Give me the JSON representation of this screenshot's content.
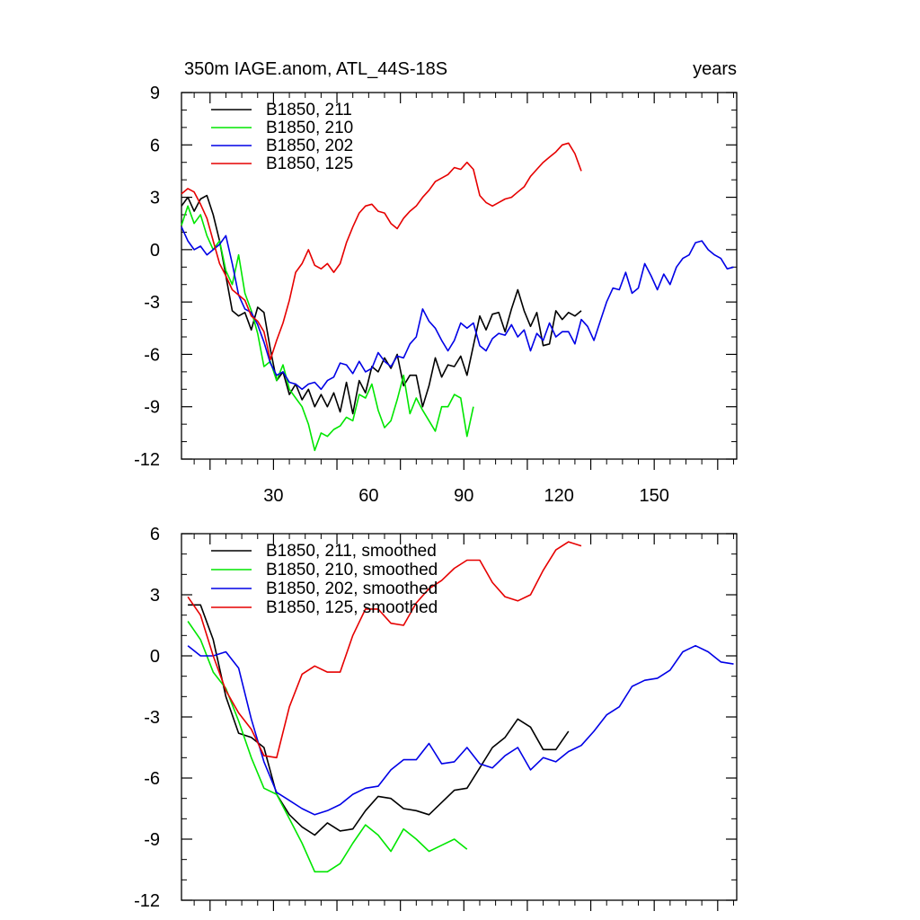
{
  "colors": {
    "black": "#000000",
    "green": "#00e600",
    "blue": "#0000e6",
    "red": "#e60000"
  },
  "chart_data": [
    {
      "type": "line",
      "title": "350m IAGE.anom, ATL_44S-18S",
      "title_right": "years",
      "xlim": [
        1,
        176
      ],
      "ylim": [
        -12,
        9
      ],
      "yticks": [
        -12,
        -9,
        -6,
        -3,
        0,
        3,
        6,
        9
      ],
      "ytick_labels": [
        "-12",
        "-9",
        "-6",
        "-3",
        "0",
        "3",
        "6",
        "9"
      ],
      "xticks": [
        30,
        60,
        90,
        120,
        150
      ],
      "xtick_labels": [
        "30",
        "60",
        "90",
        "120",
        "150"
      ],
      "legend": [
        "B1850, 211",
        "B1850, 210",
        "B1850, 202",
        "B1850, 125"
      ],
      "series": [
        {
          "name": "B1850, 211",
          "color": "#000000",
          "x": [
            1,
            3,
            5,
            7,
            9,
            11,
            13,
            15,
            17,
            19,
            21,
            23,
            25,
            27,
            29,
            31,
            33,
            35,
            37,
            39,
            41,
            43,
            45,
            47,
            49,
            51,
            53,
            55,
            57,
            59,
            61,
            63,
            65,
            67,
            69,
            71,
            73,
            75,
            77,
            79,
            81,
            83,
            85,
            87,
            89,
            91,
            93,
            95,
            97,
            99,
            101,
            103,
            105,
            107,
            109,
            111,
            113,
            115,
            117,
            119,
            121,
            123,
            125,
            127
          ],
          "values": [
            2.5,
            3.0,
            2.2,
            2.9,
            3.1,
            2.0,
            0.5,
            -1.5,
            -3.5,
            -3.8,
            -3.6,
            -4.6,
            -3.3,
            -3.6,
            -5.7,
            -7.5,
            -7.0,
            -8.3,
            -7.7,
            -8.6,
            -8.0,
            -9.0,
            -8.3,
            -9.0,
            -8.2,
            -9.3,
            -7.6,
            -9.4,
            -7.5,
            -8.2,
            -6.7,
            -7.0,
            -6.2,
            -6.8,
            -6.0,
            -7.8,
            -7.2,
            -7.2,
            -9.0,
            -7.8,
            -6.2,
            -7.3,
            -6.6,
            -6.7,
            -6.1,
            -7.2,
            -5.5,
            -3.8,
            -4.6,
            -3.7,
            -3.6,
            -4.7,
            -3.4,
            -2.3,
            -3.5,
            -4.4,
            -3.6,
            -5.5,
            -5.4,
            -3.5,
            -4.0,
            -3.6,
            -3.8,
            -3.5
          ]
        },
        {
          "name": "B1850, 210",
          "color": "#00e600",
          "x": [
            1,
            3,
            5,
            7,
            9,
            11,
            13,
            15,
            17,
            19,
            21,
            23,
            25,
            27,
            29,
            31,
            33,
            35,
            37,
            39,
            41,
            43,
            45,
            47,
            49,
            51,
            53,
            55,
            57,
            59,
            61,
            63,
            65,
            67,
            69,
            71,
            73,
            75,
            77,
            79,
            81,
            83,
            85,
            87,
            89,
            91,
            93
          ],
          "values": [
            1.4,
            2.5,
            1.5,
            2.0,
            0.8,
            0.0,
            0.5,
            -1.2,
            -2.0,
            -0.3,
            -2.5,
            -3.5,
            -4.8,
            -6.7,
            -6.4,
            -7.5,
            -6.6,
            -8.0,
            -8.5,
            -9.0,
            -10.0,
            -11.5,
            -10.5,
            -10.7,
            -10.3,
            -10.1,
            -9.6,
            -9.8,
            -8.3,
            -8.5,
            -7.7,
            -9.2,
            -10.2,
            -9.8,
            -8.6,
            -7.2,
            -9.4,
            -8.5,
            -9.2,
            -9.8,
            -10.4,
            -9.0,
            -9.0,
            -8.3,
            -8.5,
            -10.7,
            -9.0
          ]
        },
        {
          "name": "B1850, 202",
          "color": "#0000e6",
          "x": [
            1,
            3,
            5,
            7,
            9,
            11,
            13,
            15,
            17,
            19,
            21,
            23,
            25,
            27,
            29,
            31,
            33,
            35,
            37,
            39,
            41,
            43,
            45,
            47,
            49,
            51,
            53,
            55,
            57,
            59,
            61,
            63,
            65,
            67,
            69,
            71,
            73,
            75,
            77,
            79,
            81,
            83,
            85,
            87,
            89,
            91,
            93,
            95,
            97,
            99,
            101,
            103,
            105,
            107,
            109,
            111,
            113,
            115,
            117,
            119,
            121,
            123,
            125,
            127,
            129,
            131,
            133,
            135,
            137,
            139,
            141,
            143,
            145,
            147,
            149,
            151,
            153,
            155,
            157,
            159,
            161,
            163,
            165,
            167,
            169,
            171,
            173,
            175
          ],
          "values": [
            1.3,
            0.5,
            0.0,
            0.2,
            -0.3,
            0.0,
            0.3,
            0.8,
            -0.8,
            -2.6,
            -3.4,
            -3.6,
            -4.3,
            -5.3,
            -6.5,
            -7.2,
            -7.0,
            -7.6,
            -7.7,
            -8.0,
            -7.7,
            -7.6,
            -8.0,
            -7.5,
            -7.3,
            -6.5,
            -6.6,
            -7.1,
            -6.4,
            -7.0,
            -6.8,
            -5.9,
            -6.4,
            -6.7,
            -6.1,
            -6.2,
            -5.4,
            -5.0,
            -3.4,
            -4.1,
            -4.5,
            -5.2,
            -5.8,
            -5.2,
            -4.2,
            -4.5,
            -4.2,
            -5.5,
            -5.8,
            -5.1,
            -4.8,
            -4.9,
            -4.3,
            -5.0,
            -4.6,
            -5.8,
            -4.8,
            -5.2,
            -4.2,
            -5.0,
            -4.7,
            -4.7,
            -5.4,
            -4.0,
            -4.4,
            -5.2,
            -4.1,
            -3.0,
            -2.2,
            -2.3,
            -1.3,
            -2.5,
            -2.2,
            -0.8,
            -1.5,
            -2.3,
            -1.4,
            -2.0,
            -1.0,
            -0.5,
            -0.3,
            0.4,
            0.5,
            0.0,
            -0.3,
            -0.5,
            -1.1,
            -1.0
          ]
        },
        {
          "name": "B1850, 125",
          "color": "#e60000",
          "x": [
            1,
            3,
            5,
            7,
            9,
            11,
            13,
            15,
            17,
            19,
            21,
            23,
            25,
            27,
            29,
            31,
            33,
            35,
            37,
            39,
            41,
            43,
            45,
            47,
            49,
            51,
            53,
            55,
            57,
            59,
            61,
            63,
            65,
            67,
            69,
            71,
            73,
            75,
            77,
            79,
            81,
            83,
            85,
            87,
            89,
            91,
            93,
            95,
            97,
            99,
            101,
            103,
            105,
            107,
            109,
            111,
            113,
            115,
            117,
            119,
            121,
            123,
            125,
            127
          ],
          "values": [
            3.2,
            3.5,
            3.3,
            2.6,
            1.8,
            0.5,
            -0.8,
            -1.5,
            -2.3,
            -2.6,
            -2.9,
            -3.8,
            -4.1,
            -4.7,
            -6.3,
            -5.2,
            -4.2,
            -2.9,
            -1.3,
            -0.8,
            0.0,
            -0.9,
            -1.1,
            -0.8,
            -1.3,
            -0.8,
            0.4,
            1.3,
            2.1,
            2.5,
            2.6,
            2.2,
            2.1,
            1.5,
            1.2,
            1.8,
            2.2,
            2.5,
            3.0,
            3.4,
            3.9,
            4.1,
            4.3,
            4.7,
            4.6,
            5.0,
            4.6,
            3.1,
            2.7,
            2.5,
            2.7,
            2.9,
            3.0,
            3.3,
            3.6,
            4.2,
            4.6,
            5.0,
            5.3,
            5.6,
            6.0,
            6.1,
            5.5,
            4.5
          ]
        }
      ]
    },
    {
      "type": "line",
      "title": "",
      "xlim": [
        1,
        176
      ],
      "ylim": [
        -12,
        6
      ],
      "yticks": [
        -12,
        -9,
        -6,
        -3,
        0,
        3,
        6
      ],
      "ytick_labels": [
        "-12",
        "-9",
        "-6",
        "-3",
        "0",
        "3",
        "6"
      ],
      "legend": [
        "B1850, 211, smoothed",
        "B1850, 210, smoothed",
        "B1850, 202, smoothed",
        "B1850, 125, smoothed"
      ],
      "series": [
        {
          "name": "B1850, 211, smoothed",
          "color": "#000000",
          "x": [
            3,
            7,
            11,
            15,
            19,
            23,
            27,
            31,
            35,
            39,
            43,
            47,
            51,
            55,
            59,
            63,
            67,
            71,
            75,
            79,
            83,
            87,
            91,
            95,
            99,
            103,
            107,
            111,
            115,
            119,
            123
          ],
          "values": [
            2.5,
            2.5,
            0.8,
            -2.0,
            -3.8,
            -4.0,
            -4.5,
            -6.8,
            -7.8,
            -8.4,
            -8.8,
            -8.2,
            -8.6,
            -8.5,
            -7.6,
            -6.9,
            -7.0,
            -7.5,
            -7.6,
            -7.8,
            -7.2,
            -6.6,
            -6.5,
            -5.5,
            -4.5,
            -4.0,
            -3.1,
            -3.5,
            -4.6,
            -4.6,
            -3.7
          ]
        },
        {
          "name": "B1850, 210, smoothed",
          "color": "#00e600",
          "x": [
            3,
            7,
            11,
            15,
            19,
            23,
            27,
            31,
            35,
            39,
            43,
            47,
            51,
            55,
            59,
            63,
            67,
            71,
            75,
            79,
            83,
            87,
            91
          ],
          "values": [
            1.7,
            0.8,
            -0.8,
            -1.6,
            -3.2,
            -5.0,
            -6.5,
            -6.8,
            -8.0,
            -9.2,
            -10.6,
            -10.6,
            -10.2,
            -9.2,
            -8.3,
            -8.8,
            -9.6,
            -8.5,
            -9.0,
            -9.6,
            -9.3,
            -9.0,
            -9.5
          ]
        },
        {
          "name": "B1850, 202, smoothed",
          "color": "#0000e6",
          "x": [
            3,
            7,
            11,
            15,
            19,
            23,
            27,
            31,
            35,
            39,
            43,
            47,
            51,
            55,
            59,
            63,
            67,
            71,
            75,
            79,
            83,
            87,
            91,
            95,
            99,
            103,
            107,
            111,
            115,
            119,
            123,
            127,
            131,
            135,
            139,
            143,
            147,
            151,
            155,
            159,
            163,
            167,
            171,
            175
          ],
          "values": [
            0.5,
            0.0,
            0.0,
            0.2,
            -0.6,
            -3.1,
            -5.2,
            -6.7,
            -7.1,
            -7.5,
            -7.8,
            -7.6,
            -7.3,
            -6.8,
            -6.5,
            -6.4,
            -5.6,
            -5.1,
            -5.1,
            -4.3,
            -5.3,
            -5.2,
            -4.5,
            -5.3,
            -5.5,
            -4.9,
            -4.5,
            -5.6,
            -5.0,
            -5.2,
            -4.7,
            -4.4,
            -3.7,
            -2.9,
            -2.5,
            -1.5,
            -1.2,
            -1.1,
            -0.7,
            0.2,
            0.5,
            0.2,
            -0.3,
            -0.4
          ]
        },
        {
          "name": "B1850, 125, smoothed",
          "color": "#e60000",
          "x": [
            3,
            7,
            11,
            15,
            19,
            23,
            27,
            31,
            35,
            39,
            43,
            47,
            51,
            55,
            59,
            63,
            67,
            71,
            75,
            79,
            83,
            87,
            91,
            95,
            99,
            103,
            107,
            111,
            115,
            119,
            123,
            127
          ],
          "values": [
            2.9,
            2.0,
            0.0,
            -1.7,
            -2.8,
            -3.6,
            -4.9,
            -5.0,
            -2.5,
            -0.9,
            -0.5,
            -0.8,
            -0.8,
            1.0,
            2.3,
            2.3,
            1.6,
            1.5,
            2.6,
            3.3,
            3.7,
            4.3,
            4.7,
            4.7,
            3.6,
            2.9,
            2.7,
            3.0,
            4.2,
            5.2,
            5.6,
            5.4
          ]
        }
      ]
    }
  ]
}
